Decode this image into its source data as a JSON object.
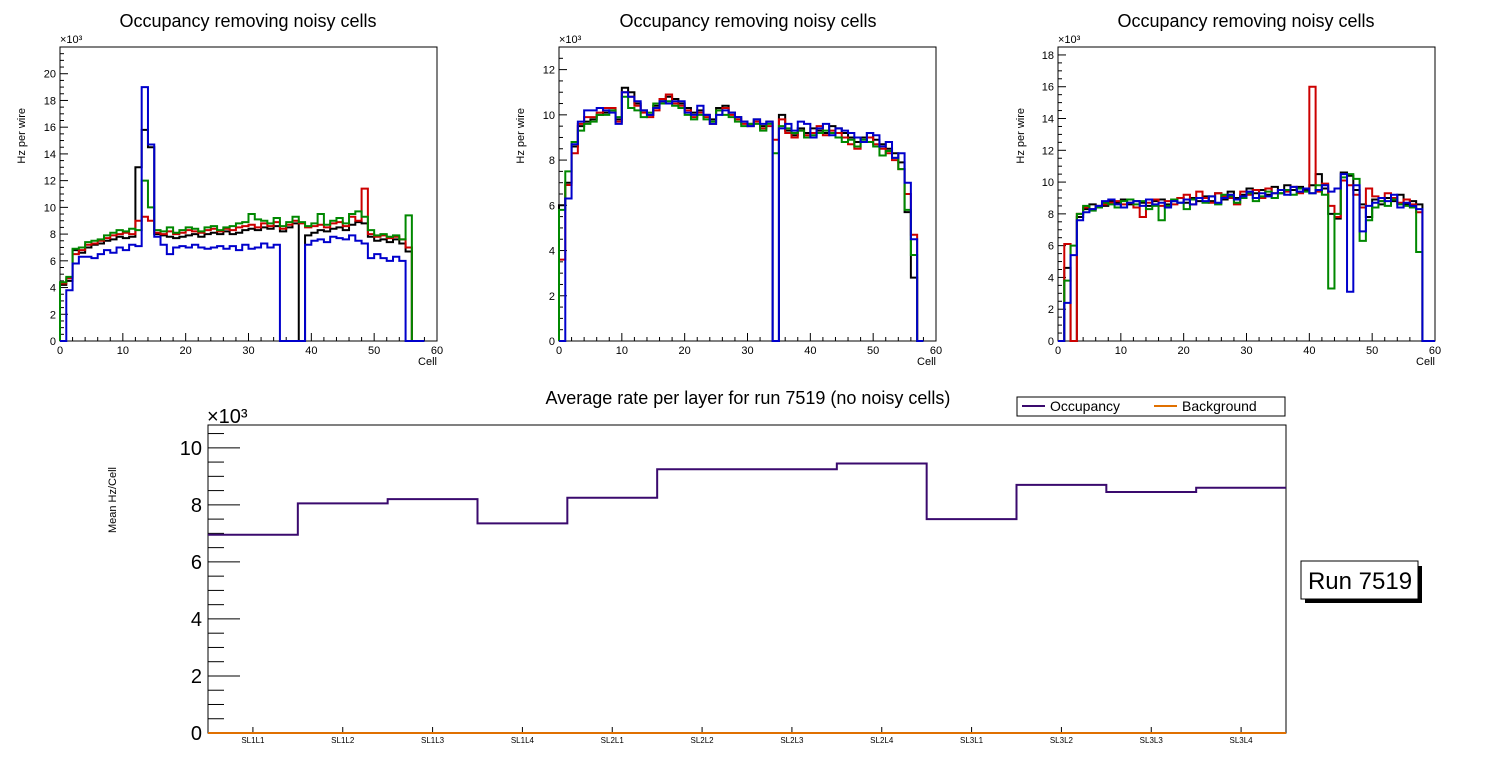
{
  "chart_data": [
    {
      "type": "line",
      "title": "Occupancy removing noisy cells",
      "xlabel": "Cell",
      "ylabel": "Hz per wire",
      "exponent_label": "×10³",
      "xlim": [
        0,
        60
      ],
      "ylim": [
        0,
        22
      ],
      "xticks": [
        0,
        10,
        20,
        30,
        40,
        50,
        60
      ],
      "yticks": [
        0,
        2,
        4,
        6,
        8,
        10,
        12,
        14,
        16,
        18,
        20
      ],
      "x": [
        0,
        1,
        2,
        3,
        4,
        5,
        6,
        7,
        8,
        9,
        10,
        11,
        12,
        13,
        14,
        15,
        16,
        17,
        18,
        19,
        20,
        21,
        22,
        23,
        24,
        25,
        26,
        27,
        28,
        29,
        30,
        31,
        32,
        33,
        34,
        35,
        36,
        37,
        38,
        39,
        40,
        41,
        42,
        43,
        44,
        45,
        46,
        47,
        48,
        49,
        50,
        51,
        52,
        53,
        54,
        55,
        56,
        57
      ],
      "series": [
        {
          "name": "layer1",
          "color": "#000000",
          "values": [
            4.2,
            4.5,
            6.8,
            6.6,
            7.0,
            7.2,
            7.3,
            7.5,
            7.6,
            7.8,
            7.7,
            7.8,
            13.0,
            15.8,
            14.5,
            8.0,
            7.9,
            7.8,
            7.7,
            7.8,
            7.9,
            8.0,
            7.8,
            8.0,
            8.1,
            8.0,
            8.2,
            8.0,
            8.1,
            8.3,
            8.4,
            8.3,
            8.5,
            8.4,
            8.6,
            8.2,
            8.5,
            8.8,
            0,
            7.9,
            8.1,
            8.3,
            8.2,
            8.4,
            8.5,
            8.3,
            8.7,
            8.9,
            8.8,
            7.8,
            7.5,
            7.6,
            7.4,
            7.6,
            7.3,
            6.7,
            0,
            0
          ]
        },
        {
          "name": "layer2",
          "color": "#cc0000",
          "values": [
            4.3,
            4.7,
            6.5,
            6.8,
            7.2,
            7.3,
            7.5,
            7.7,
            7.9,
            8.0,
            8.1,
            8.0,
            9.0,
            9.3,
            9.0,
            8.1,
            8.0,
            8.2,
            8.0,
            8.1,
            8.3,
            8.2,
            8.1,
            8.3,
            8.4,
            8.2,
            8.4,
            8.3,
            8.5,
            8.6,
            8.7,
            8.5,
            8.8,
            8.6,
            8.9,
            8.4,
            8.7,
            9.0,
            8.8,
            8.5,
            8.6,
            8.7,
            8.5,
            8.8,
            8.9,
            8.6,
            9.3,
            9.0,
            11.4,
            8.0,
            7.8,
            7.9,
            7.7,
            7.8,
            7.6,
            7.0,
            0,
            0
          ]
        },
        {
          "name": "layer3",
          "color": "#008800",
          "values": [
            4.4,
            4.8,
            6.9,
            7.0,
            7.4,
            7.5,
            7.6,
            7.9,
            8.1,
            8.3,
            8.2,
            8.4,
            8.3,
            12.0,
            10.0,
            8.3,
            8.2,
            8.5,
            8.1,
            8.3,
            8.5,
            8.4,
            8.2,
            8.5,
            8.6,
            8.3,
            8.5,
            8.6,
            8.8,
            8.9,
            9.5,
            9.1,
            9.0,
            8.8,
            9.2,
            8.6,
            8.9,
            9.3,
            8.9,
            8.6,
            8.8,
            9.5,
            8.7,
            9.0,
            9.2,
            8.8,
            9.5,
            9.7,
            9.3,
            8.3,
            7.9,
            8.0,
            7.8,
            7.9,
            7.6,
            9.4,
            0,
            0
          ]
        },
        {
          "name": "layer4",
          "color": "#0000cc",
          "values": [
            0,
            3.8,
            5.8,
            6.3,
            6.3,
            6.2,
            6.5,
            6.8,
            6.6,
            7.0,
            6.8,
            7.2,
            7.1,
            19.0,
            14.7,
            7.8,
            7.2,
            6.5,
            7.0,
            7.1,
            7.0,
            7.2,
            7.0,
            6.9,
            7.0,
            7.1,
            6.9,
            7.1,
            6.8,
            7.2,
            6.9,
            7.0,
            7.3,
            7.0,
            7.2,
            0,
            0,
            0,
            0,
            7.2,
            7.5,
            7.6,
            7.4,
            7.8,
            7.7,
            7.6,
            7.9,
            7.5,
            7.3,
            6.2,
            6.5,
            6.2,
            6.0,
            6.3,
            6.0,
            0,
            0,
            0
          ]
        }
      ]
    },
    {
      "type": "line",
      "title": "Occupancy removing noisy cells",
      "xlabel": "Cell",
      "ylabel": "Hz per wire",
      "exponent_label": "×10³",
      "xlim": [
        0,
        60
      ],
      "ylim": [
        0,
        13
      ],
      "xticks": [
        0,
        10,
        20,
        30,
        40,
        50,
        60
      ],
      "yticks": [
        0,
        2,
        4,
        6,
        8,
        10,
        12
      ],
      "x": [
        0,
        1,
        2,
        3,
        4,
        5,
        6,
        7,
        8,
        9,
        10,
        11,
        12,
        13,
        14,
        15,
        16,
        17,
        18,
        19,
        20,
        21,
        22,
        23,
        24,
        25,
        26,
        27,
        28,
        29,
        30,
        31,
        32,
        33,
        34,
        35,
        36,
        37,
        38,
        39,
        40,
        41,
        42,
        43,
        44,
        45,
        46,
        47,
        48,
        49,
        50,
        51,
        52,
        53,
        54,
        55,
        56,
        57
      ],
      "series": [
        {
          "name": "layer1",
          "color": "#000000",
          "values": [
            6.0,
            7.0,
            8.6,
            9.5,
            9.7,
            9.8,
            10.0,
            10.1,
            10.2,
            9.8,
            11.2,
            11.0,
            10.5,
            10.2,
            10.0,
            10.4,
            10.6,
            10.8,
            10.7,
            10.5,
            10.3,
            10.1,
            10.2,
            10.0,
            9.8,
            10.3,
            10.4,
            10.1,
            9.9,
            9.7,
            9.6,
            9.8,
            9.5,
            9.7,
            0,
            10.0,
            9.3,
            9.1,
            9.4,
            9.2,
            9.4,
            9.3,
            9.2,
            9.5,
            9.4,
            9.2,
            9.0,
            8.8,
            9.0,
            9.2,
            8.9,
            8.7,
            8.5,
            8.3,
            7.9,
            5.7,
            2.8,
            0
          ]
        },
        {
          "name": "layer2",
          "color": "#cc0000",
          "values": [
            3.6,
            6.9,
            8.3,
            9.6,
            9.9,
            9.9,
            10.1,
            10.3,
            10.3,
            9.7,
            11.0,
            10.8,
            10.4,
            10.1,
            9.9,
            10.2,
            10.7,
            10.9,
            10.5,
            10.4,
            10.2,
            9.9,
            10.1,
            9.9,
            9.6,
            10.2,
            10.3,
            10.0,
            9.8,
            9.6,
            9.5,
            9.7,
            9.4,
            9.5,
            8.9,
            9.8,
            9.2,
            9.0,
            9.3,
            9.1,
            9.2,
            9.5,
            9.1,
            9.3,
            9.2,
            9.0,
            8.7,
            8.5,
            8.8,
            9.0,
            8.7,
            8.5,
            8.3,
            8.0,
            7.6,
            6.5,
            4.7,
            0
          ]
        },
        {
          "name": "layer3",
          "color": "#008800",
          "values": [
            5.8,
            7.5,
            8.8,
            9.3,
            9.6,
            9.7,
            10.0,
            10.0,
            10.2,
            9.9,
            10.8,
            10.3,
            10.2,
            9.9,
            10.1,
            10.5,
            10.5,
            10.6,
            10.4,
            10.3,
            10.0,
            9.8,
            10.0,
            9.8,
            9.7,
            10.2,
            10.0,
            9.9,
            9.7,
            9.5,
            9.6,
            9.6,
            9.3,
            9.6,
            8.3,
            9.5,
            9.4,
            9.2,
            9.3,
            9.0,
            9.1,
            9.2,
            9.3,
            9.2,
            9.0,
            8.8,
            8.9,
            8.6,
            8.9,
            8.8,
            8.6,
            8.2,
            8.4,
            8.1,
            7.6,
            5.8,
            3.8,
            0
          ]
        },
        {
          "name": "layer4",
          "color": "#0000cc",
          "values": [
            0,
            6.3,
            8.7,
            9.7,
            10.2,
            10.2,
            10.3,
            10.2,
            10.1,
            9.6,
            11.0,
            10.8,
            10.6,
            10.2,
            10.0,
            10.3,
            10.6,
            10.5,
            10.6,
            10.6,
            10.1,
            10.0,
            10.4,
            10.0,
            9.6,
            10.0,
            10.2,
            10.1,
            9.9,
            9.7,
            9.5,
            9.8,
            9.6,
            9.7,
            0,
            9.4,
            9.6,
            9.3,
            9.7,
            9.6,
            9.0,
            9.4,
            9.6,
            9.1,
            9.4,
            9.3,
            9.2,
            9.0,
            8.8,
            9.2,
            9.1,
            8.6,
            8.8,
            8.1,
            8.3,
            7.0,
            4.5,
            0
          ]
        }
      ]
    },
    {
      "type": "line",
      "title": "Occupancy removing noisy cells",
      "xlabel": "Cell",
      "ylabel": "Hz per wire",
      "exponent_label": "×10³",
      "xlim": [
        0,
        60
      ],
      "ylim": [
        0,
        18.5
      ],
      "xticks": [
        0,
        10,
        20,
        30,
        40,
        50,
        60
      ],
      "yticks": [
        0,
        2,
        4,
        6,
        8,
        10,
        12,
        14,
        16,
        18
      ],
      "x": [
        0,
        1,
        2,
        3,
        4,
        5,
        6,
        7,
        8,
        9,
        10,
        11,
        12,
        13,
        14,
        15,
        16,
        17,
        18,
        19,
        20,
        21,
        22,
        23,
        24,
        25,
        26,
        27,
        28,
        29,
        30,
        31,
        32,
        33,
        34,
        35,
        36,
        37,
        38,
        39,
        40,
        41,
        42,
        43,
        44,
        45,
        46,
        47,
        48,
        49,
        50,
        51,
        52,
        53,
        54,
        55,
        56,
        57,
        58,
        59
      ],
      "series": [
        {
          "name": "layer1",
          "color": "#000000",
          "values": [
            0,
            4.6,
            0,
            7.8,
            8.3,
            8.6,
            8.4,
            8.5,
            8.8,
            8.7,
            8.9,
            8.6,
            8.8,
            8.7,
            8.5,
            8.8,
            8.9,
            8.6,
            8.8,
            9.0,
            8.7,
            9.0,
            8.8,
            9.1,
            8.8,
            9.3,
            8.9,
            9.4,
            9.0,
            9.2,
            9.6,
            9.3,
            9.5,
            9.2,
            9.7,
            9.3,
            9.8,
            9.5,
            9.7,
            9.5,
            9.8,
            10.5,
            9.6,
            8.0,
            7.7,
            10.6,
            10.4,
            9.5,
            8.6,
            7.8,
            8.9,
            8.6,
            9.0,
            8.8,
            9.2,
            8.6,
            8.8,
            8.6,
            0,
            0
          ]
        },
        {
          "name": "layer2",
          "color": "#cc0000",
          "values": [
            0,
            6.1,
            0,
            8.0,
            8.4,
            8.3,
            8.5,
            8.6,
            8.7,
            8.8,
            8.6,
            8.7,
            8.4,
            7.8,
            8.7,
            8.9,
            8.5,
            8.8,
            8.6,
            9.0,
            9.2,
            8.6,
            9.4,
            9.0,
            8.7,
            9.3,
            9.1,
            9.0,
            8.6,
            9.4,
            9.2,
            9.5,
            9.0,
            9.6,
            9.3,
            9.5,
            9.4,
            9.7,
            9.3,
            9.6,
            16.0,
            9.4,
            9.9,
            8.5,
            7.8,
            10.1,
            9.8,
            9.2,
            8.4,
            9.6,
            9.1,
            8.8,
            9.3,
            9.0,
            8.7,
            8.9,
            8.6,
            8.1,
            0,
            0
          ]
        },
        {
          "name": "layer3",
          "color": "#008800",
          "values": [
            0,
            3.8,
            6.0,
            8.0,
            8.5,
            8.2,
            8.4,
            8.7,
            8.6,
            8.4,
            8.8,
            8.9,
            8.6,
            8.8,
            8.3,
            8.5,
            7.6,
            8.5,
            8.9,
            8.7,
            8.3,
            8.9,
            9.0,
            8.7,
            9.1,
            8.6,
            9.2,
            9.1,
            8.7,
            9.0,
            9.3,
            8.8,
            9.1,
            9.4,
            9.0,
            9.3,
            9.5,
            9.2,
            9.6,
            9.4,
            9.3,
            9.8,
            9.2,
            3.3,
            8.0,
            10.3,
            10.5,
            10.2,
            6.3,
            7.6,
            8.4,
            8.8,
            8.5,
            8.9,
            8.6,
            8.5,
            8.4,
            5.6,
            0,
            0
          ]
        },
        {
          "name": "layer4",
          "color": "#0000cc",
          "values": [
            0,
            2.4,
            5.4,
            7.6,
            8.1,
            8.3,
            8.5,
            8.8,
            8.9,
            8.6,
            8.4,
            8.7,
            8.8,
            8.5,
            8.9,
            8.6,
            8.7,
            8.4,
            8.8,
            8.7,
            8.9,
            8.6,
            9.0,
            8.8,
            9.1,
            8.7,
            9.0,
            9.2,
            8.9,
            9.1,
            9.4,
            9.0,
            9.3,
            9.1,
            9.3,
            9.5,
            9.2,
            9.7,
            9.4,
            9.6,
            9.3,
            9.5,
            9.8,
            9.4,
            9.6,
            10.5,
            3.1,
            9.8,
            6.9,
            8.5,
            8.7,
            9.0,
            8.8,
            9.2,
            8.4,
            8.7,
            8.5,
            8.3,
            0,
            0
          ]
        }
      ]
    },
    {
      "type": "line",
      "title": "Average rate per layer for run 7519 (no noisy cells)",
      "xlabel": "",
      "ylabel": "Mean Hz/Cell",
      "exponent_label": "×10³",
      "ylim": [
        0,
        10.8
      ],
      "yticks": [
        0,
        2,
        4,
        6,
        8,
        10
      ],
      "categories": [
        "SL1L1",
        "SL1L2",
        "SL1L3",
        "SL1L4",
        "SL2L1",
        "SL2L2",
        "SL2L3",
        "SL2L4",
        "SL3L1",
        "SL3L2",
        "SL3L3",
        "SL3L4"
      ],
      "series": [
        {
          "name": "Occupancy",
          "color": "#3a0a6e",
          "values": [
            6.95,
            8.05,
            8.2,
            7.35,
            8.25,
            9.25,
            9.25,
            9.45,
            7.5,
            8.7,
            8.45,
            8.6
          ]
        },
        {
          "name": "Background",
          "color": "#e07000",
          "values": [
            0,
            0,
            0,
            0,
            0,
            0,
            0,
            0,
            0,
            0,
            0,
            0
          ]
        }
      ],
      "legend": [
        "Occupancy",
        "Background"
      ],
      "run_label": "Run 7519"
    }
  ]
}
